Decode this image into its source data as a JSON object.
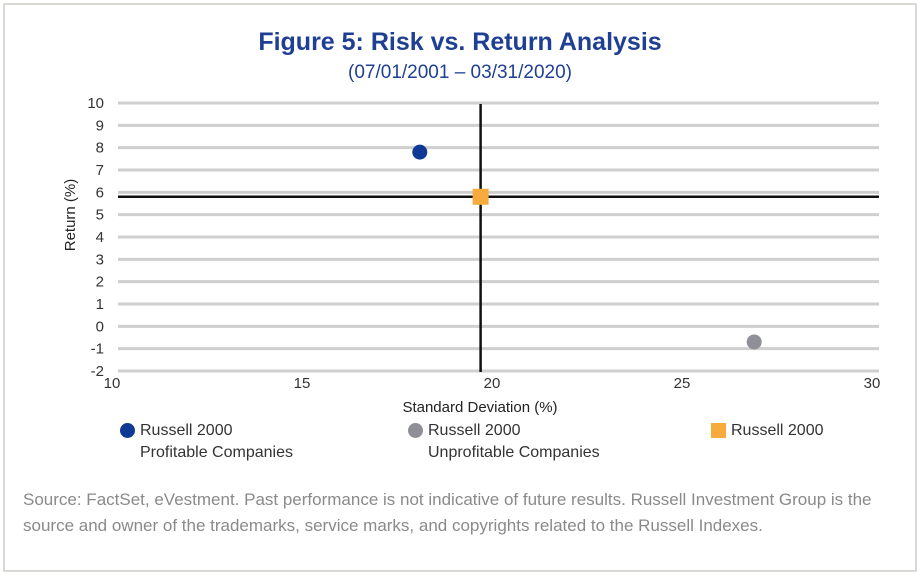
{
  "chart_data": {
    "type": "scatter",
    "title": "Figure 5: Risk vs. Return Analysis",
    "subtitle": "(07/01/2001 – 03/31/2020)",
    "xlabel": "Standard Deviation (%)",
    "ylabel": "Return (%)",
    "xlim": [
      10,
      30
    ],
    "ylim": [
      -2,
      10
    ],
    "x_ticks": [
      "10",
      "15",
      "20",
      "25",
      "30"
    ],
    "y_ticks": [
      "10",
      "9",
      "8",
      "7",
      "6",
      "5",
      "4",
      "3",
      "2",
      "1",
      "0",
      "-1",
      "-2"
    ],
    "grid": "horizontal",
    "reference_lines": {
      "x": 19.7,
      "y": 5.8
    },
    "series": [
      {
        "name": "Russell 2000 Profitable Companies",
        "line1": "Russell 2000",
        "line2": "Profitable Companies",
        "x": 18.1,
        "y": 7.8,
        "color": "#0e3a96",
        "marker": "circle"
      },
      {
        "name": "Russell 2000 Unprofitable Companies",
        "line1": "Russell 2000",
        "line2": "Unprofitable Companies",
        "x": 26.9,
        "y": -0.7,
        "color": "#8f9097",
        "marker": "circle"
      },
      {
        "name": "Russell 2000",
        "line1": "Russell 2000",
        "line2": "",
        "x": 19.7,
        "y": 5.8,
        "color": "#f6ab3c",
        "marker": "square"
      }
    ],
    "legend_position": "bottom"
  },
  "source": "Source: FactSet, eVestment. Past performance is not indicative of future results. Russell Investment Group is the source and owner of the trademarks, service marks, and copyrights related to the Russell Indexes."
}
